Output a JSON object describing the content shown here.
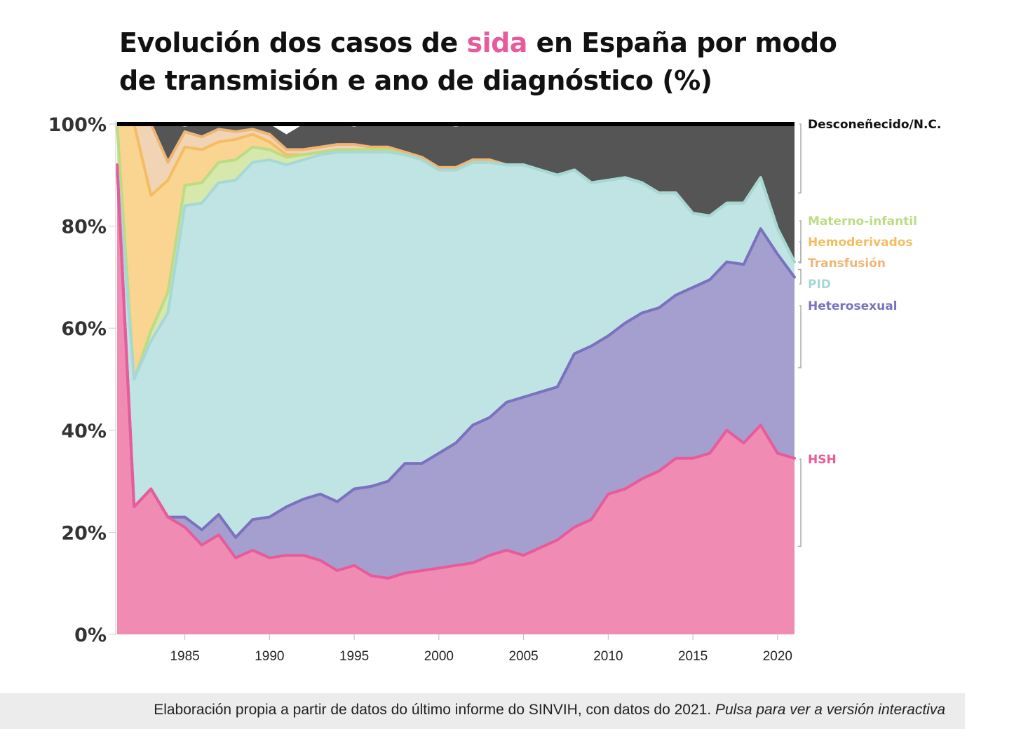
{
  "title": {
    "part1": "Evolución dos casos de ",
    "highlight": "sida",
    "part2": " en España por modo de transmisión e ano de diagnóstico (%)"
  },
  "footer": {
    "text": "Elaboración propia a partir de datos do último informe do SINVIH, con datos do 2021. ",
    "link": "Pulsa para ver a versión interactiva"
  },
  "chart_data": {
    "type": "area",
    "stacked": true,
    "x": [
      1981,
      1982,
      1983,
      1984,
      1985,
      1986,
      1987,
      1988,
      1989,
      1990,
      1991,
      1992,
      1993,
      1994,
      1995,
      1996,
      1997,
      1998,
      1999,
      2000,
      2001,
      2002,
      2003,
      2004,
      2005,
      2006,
      2007,
      2008,
      2009,
      2010,
      2011,
      2012,
      2013,
      2014,
      2015,
      2016,
      2017,
      2018,
      2019,
      2020,
      2021
    ],
    "xlim": [
      1981,
      2021
    ],
    "x_ticks": [
      "1985",
      "1990",
      "1995",
      "2000",
      "2005",
      "2010",
      "2015",
      "2020"
    ],
    "y_ticks": [
      "0%",
      "20%",
      "40%",
      "60%",
      "80%",
      "100%"
    ],
    "ylim": [
      0,
      100
    ],
    "series": [
      {
        "name": "HSH",
        "color": "#e85b9a",
        "fill": "#f08bb3",
        "values": [
          92,
          25,
          28.5,
          23,
          21,
          17.5,
          19.5,
          15,
          16.5,
          15,
          15.5,
          15.5,
          14.5,
          12.5,
          13.5,
          11.5,
          11,
          12,
          12.5,
          13,
          13.5,
          14,
          15.5,
          16.5,
          15.5,
          17,
          18.5,
          21,
          22.5,
          27.5,
          28.5,
          30.5,
          32,
          34.5,
          34.5,
          35.5,
          40,
          37.5,
          41,
          35.5,
          34.5
        ]
      },
      {
        "name": "Heterosexual",
        "color": "#7a72bf",
        "fill": "#a59fcf",
        "values": [
          0,
          0,
          0,
          0,
          2,
          3,
          4,
          4,
          6,
          8,
          9.5,
          11,
          13,
          13.5,
          15,
          17.5,
          19,
          21.5,
          21,
          22.5,
          24,
          27,
          27,
          29,
          31,
          30.5,
          30,
          34,
          34,
          31,
          32.5,
          32.5,
          32,
          32,
          33.5,
          34,
          33,
          35,
          38.5,
          39,
          35.5
        ]
      },
      {
        "name": "PID",
        "color": "#a6d8d8",
        "fill": "#c0e4e4",
        "values": [
          0,
          25,
          29,
          40,
          61,
          64,
          65,
          70,
          70,
          70,
          67,
          66.5,
          66.5,
          68.5,
          66,
          65.5,
          64.5,
          60.5,
          59.5,
          55.5,
          53.5,
          51.5,
          50,
          46.5,
          45.5,
          43.5,
          41.5,
          36,
          32,
          30.5,
          28.5,
          25.5,
          22.5,
          20,
          14.5,
          12.5,
          11.5,
          12,
          10,
          5,
          3
        ]
      },
      {
        "name": "Materno-infantil",
        "color": "#bcdc84",
        "fill": "#d6e8ab",
        "values": [
          8,
          0,
          2,
          4,
          4,
          4,
          4,
          4,
          3,
          2,
          1.5,
          1,
          0.5,
          0.5,
          0.5,
          0.5,
          0.5,
          0,
          0,
          0,
          0,
          0,
          0,
          0,
          0,
          0,
          0,
          0,
          0,
          0,
          0,
          0,
          0,
          0,
          0,
          0,
          0,
          0,
          0,
          0,
          0
        ]
      },
      {
        "name": "Hemoderivados",
        "color": "#f5bd63",
        "fill": "#fad592",
        "values": [
          0,
          50,
          26.5,
          22,
          7.5,
          6.5,
          4,
          4,
          2.5,
          1.5,
          0.5,
          0,
          0,
          0,
          0,
          0,
          0,
          0,
          0,
          0,
          0,
          0,
          0,
          0,
          0,
          0,
          0,
          0,
          0,
          0,
          0,
          0,
          0,
          0,
          0,
          0,
          0,
          0,
          0,
          0,
          0
        ]
      },
      {
        "name": "Transfusión",
        "color": "#efb575",
        "fill": "#f0d4b4",
        "values": [
          0,
          0,
          14,
          3.5,
          3,
          2.5,
          2.5,
          1.5,
          1,
          1.5,
          1,
          1,
          1,
          1,
          1,
          0.5,
          0.5,
          0.5,
          0.5,
          0.5,
          0.5,
          0.5,
          0.5,
          0,
          0,
          0,
          0,
          0,
          0,
          0,
          0,
          0,
          0,
          0,
          0,
          0,
          0,
          0,
          0,
          0,
          0
        ]
      },
      {
        "name": "Desconeñecido/N.C.",
        "color": "#111111",
        "fill": "#555555",
        "values": [
          0,
          0,
          0,
          7.5,
          1,
          2.5,
          3,
          4,
          2.5,
          2,
          3,
          5,
          5,
          4,
          3.5,
          4.5,
          4.5,
          5.5,
          6.5,
          8.5,
          8,
          7,
          7,
          8,
          8,
          9,
          10,
          9,
          11.5,
          11,
          10.5,
          11.5,
          13.5,
          13.5,
          17.5,
          18,
          15.5,
          15.5,
          10.5,
          20.5,
          27
        ]
      }
    ],
    "legend_order": [
      "Desconeñecido/N.C.",
      "Materno-infantil",
      "Hemoderivados",
      "Transfusión",
      "PID",
      "Heterosexual",
      "HSH"
    ]
  }
}
